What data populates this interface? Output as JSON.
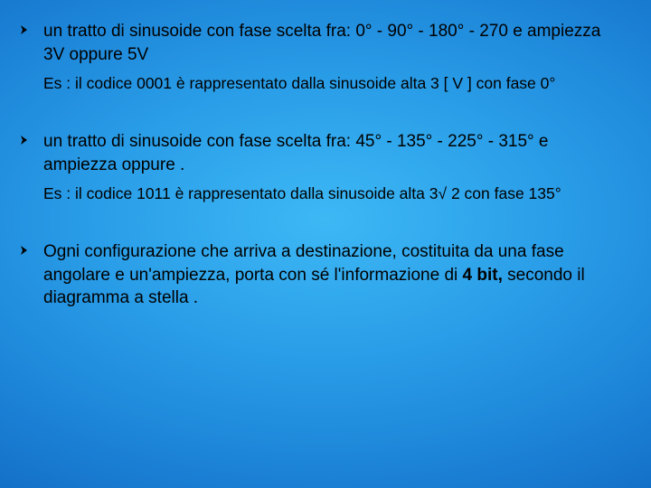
{
  "background": {
    "gradient_type": "radial",
    "center_color": "#3db8f5",
    "mid1_color": "#2a9ee8",
    "mid2_color": "#1a7fd4",
    "mid3_color": "#0d5fb8",
    "edge_color": "#053f8f"
  },
  "typography": {
    "main_fontsize": 19,
    "example_fontsize": 17.5,
    "font_family": "Arial",
    "text_color": "#000000",
    "bullet_arrow_color": "#000000"
  },
  "bullets": [
    {
      "main": "un tratto di sinusoide  con  fase scelta fra: 0° - 90° - 180° - 270 e ampiezza 3V oppure 5V",
      "example": "Es :  il codice 0001 è rappresentato dalla sinusoide alta 3 [ V ] con fase 0°"
    },
    {
      "main": " un tratto di sinusoide con fase scelta fra: 45° - 135° - 225° - 315° e ampiezza   oppure  .",
      "example": "Es :  il codice 1011 è rappresentato dalla sinusoide alta 3√ 2 con fase 135°"
    },
    {
      "main": "Ogni configurazione che arriva a destinazione, costituita da una fase angolare e un'ampiezza, porta con sé l'informazione di 4 bit, secondo il diagramma a stella .",
      "example": null
    }
  ],
  "bold_spans": {
    "bullet2_main": "4 bit,"
  }
}
